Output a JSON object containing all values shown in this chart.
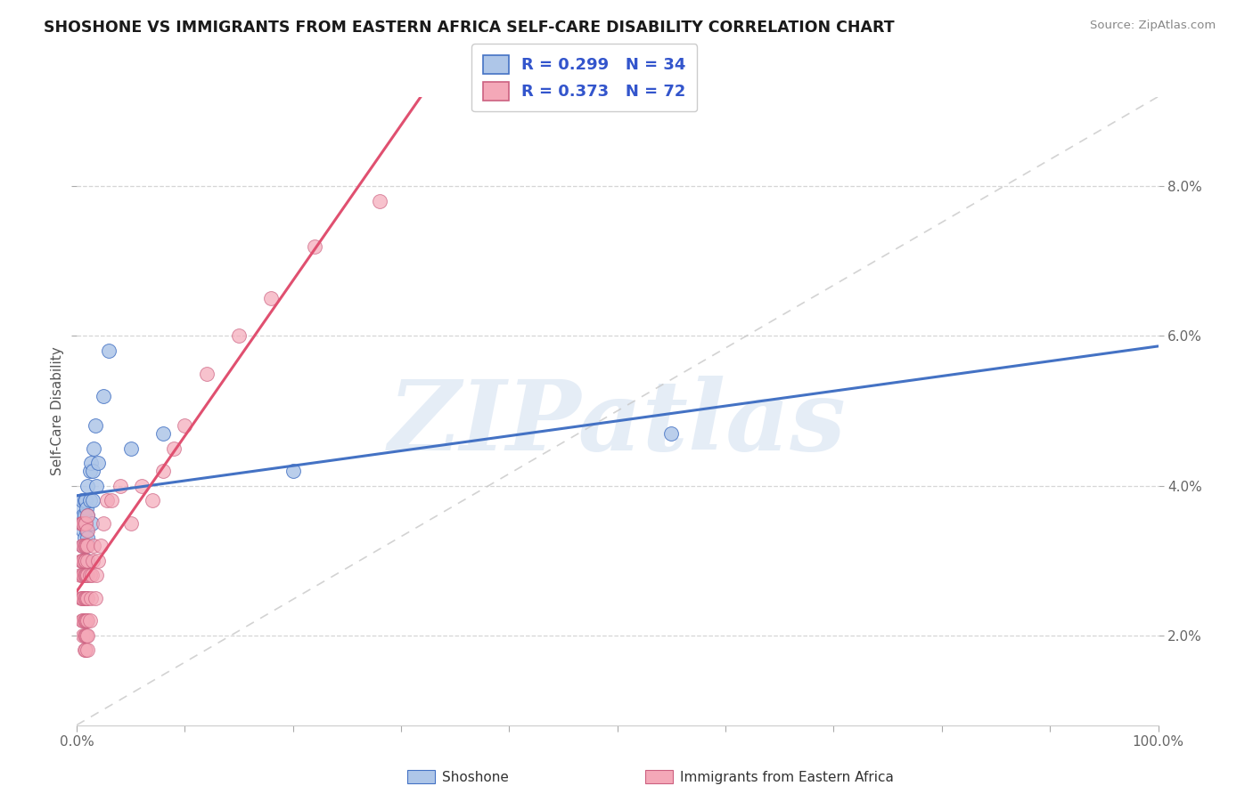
{
  "title": "SHOSHONE VS IMMIGRANTS FROM EASTERN AFRICA SELF-CARE DISABILITY CORRELATION CHART",
  "source": "Source: ZipAtlas.com",
  "ylabel": "Self-Care Disability",
  "yaxis_labels": [
    "2.0%",
    "4.0%",
    "6.0%",
    "8.0%"
  ],
  "yaxis_values": [
    0.02,
    0.04,
    0.06,
    0.08
  ],
  "xaxis_range": [
    0.0,
    1.0
  ],
  "yaxis_range": [
    0.008,
    0.092
  ],
  "legend_r1": "R = 0.299",
  "legend_n1": "N = 34",
  "legend_r2": "R = 0.373",
  "legend_n2": "N = 72",
  "color_shoshone": "#aec6e8",
  "color_immigrants": "#f4a8b8",
  "color_line_shoshone": "#4472c4",
  "color_line_immigrants": "#e05070",
  "color_diagonal": "#c8c8c8",
  "watermark_text": "ZIPatlas",
  "shoshone_x": [
    0.005,
    0.005,
    0.005,
    0.006,
    0.006,
    0.006,
    0.007,
    0.007,
    0.007,
    0.008,
    0.008,
    0.008,
    0.009,
    0.009,
    0.01,
    0.01,
    0.01,
    0.01,
    0.012,
    0.012,
    0.013,
    0.014,
    0.015,
    0.015,
    0.016,
    0.017,
    0.018,
    0.02,
    0.025,
    0.03,
    0.05,
    0.08,
    0.2,
    0.55
  ],
  "shoshone_y": [
    0.035,
    0.037,
    0.038,
    0.032,
    0.034,
    0.036,
    0.033,
    0.036,
    0.038,
    0.032,
    0.035,
    0.038,
    0.034,
    0.037,
    0.03,
    0.033,
    0.036,
    0.04,
    0.038,
    0.042,
    0.043,
    0.035,
    0.038,
    0.042,
    0.045,
    0.048,
    0.04,
    0.043,
    0.052,
    0.058,
    0.045,
    0.047,
    0.042,
    0.047
  ],
  "immigrants_x": [
    0.003,
    0.004,
    0.004,
    0.004,
    0.005,
    0.005,
    0.005,
    0.005,
    0.005,
    0.005,
    0.006,
    0.006,
    0.006,
    0.006,
    0.006,
    0.006,
    0.006,
    0.007,
    0.007,
    0.007,
    0.007,
    0.007,
    0.007,
    0.007,
    0.007,
    0.008,
    0.008,
    0.008,
    0.008,
    0.008,
    0.008,
    0.008,
    0.008,
    0.009,
    0.009,
    0.009,
    0.009,
    0.009,
    0.01,
    0.01,
    0.01,
    0.01,
    0.01,
    0.01,
    0.01,
    0.01,
    0.01,
    0.012,
    0.012,
    0.013,
    0.014,
    0.015,
    0.016,
    0.017,
    0.018,
    0.02,
    0.022,
    0.025,
    0.028,
    0.032,
    0.04,
    0.05,
    0.06,
    0.07,
    0.08,
    0.09,
    0.1,
    0.12,
    0.15,
    0.18,
    0.22,
    0.28
  ],
  "immigrants_y": [
    0.028,
    0.025,
    0.03,
    0.035,
    0.022,
    0.025,
    0.028,
    0.03,
    0.032,
    0.035,
    0.02,
    0.022,
    0.025,
    0.028,
    0.03,
    0.032,
    0.035,
    0.018,
    0.02,
    0.022,
    0.025,
    0.028,
    0.03,
    0.032,
    0.035,
    0.018,
    0.02,
    0.022,
    0.025,
    0.028,
    0.03,
    0.032,
    0.035,
    0.02,
    0.022,
    0.025,
    0.028,
    0.032,
    0.018,
    0.02,
    0.022,
    0.025,
    0.028,
    0.03,
    0.032,
    0.034,
    0.036,
    0.022,
    0.028,
    0.025,
    0.028,
    0.03,
    0.032,
    0.025,
    0.028,
    0.03,
    0.032,
    0.035,
    0.038,
    0.038,
    0.04,
    0.035,
    0.04,
    0.038,
    0.042,
    0.045,
    0.048,
    0.055,
    0.06,
    0.065,
    0.072,
    0.078
  ]
}
